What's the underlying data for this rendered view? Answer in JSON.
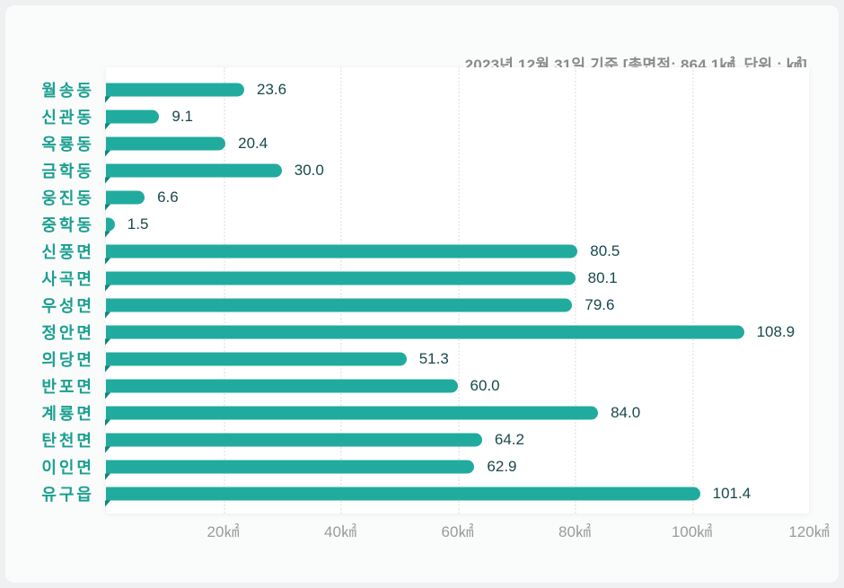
{
  "caption": "2023년 12월 31일 기준 [총면적: 864.1㎢, 단위 : ㎢]",
  "chart_data": {
    "type": "bar",
    "orientation": "horizontal",
    "title": "2023년 12월 31일 기준 [총면적: 864.1㎢, 단위 : ㎢]",
    "categories": [
      "월송동",
      "신관동",
      "옥룡동",
      "금학동",
      "웅진동",
      "중학동",
      "신풍면",
      "사곡면",
      "우성면",
      "정안면",
      "의당면",
      "반포면",
      "계룡면",
      "탄천면",
      "이인면",
      "유구읍"
    ],
    "values": [
      23.6,
      9.1,
      20.4,
      30.0,
      6.6,
      1.5,
      80.5,
      80.1,
      79.6,
      108.9,
      51.3,
      60.0,
      84.0,
      64.2,
      62.9,
      101.4
    ],
    "value_labels": [
      "23.6",
      "9.1",
      "20.4",
      "30.0",
      "6.6",
      "1.5",
      "80.5",
      "80.1",
      "79.6",
      "108.9",
      "51.3",
      "60.0",
      "84.0",
      "64.2",
      "62.9",
      "101.4"
    ],
    "xlim": [
      0,
      120
    ],
    "x_tick_values": [
      20,
      40,
      60,
      80,
      100,
      120
    ],
    "x_tick_labels": [
      "20㎢",
      "40㎢",
      "60㎢",
      "80㎢",
      "100㎢",
      "120㎢"
    ],
    "grid": "vertical-dotted",
    "legend": "none",
    "colors": {
      "bar": "#21ab9e",
      "bar_tail": "#12857a",
      "category_label": "#1a9f90",
      "value_label": "#17494b",
      "caption": "#8b8b8b",
      "tick_label": "#9b9b9b",
      "gridline": "#ededed",
      "plot_background": "#ffffff",
      "panel_background": "#fafbfb",
      "page_background": "#eff0f1"
    }
  }
}
